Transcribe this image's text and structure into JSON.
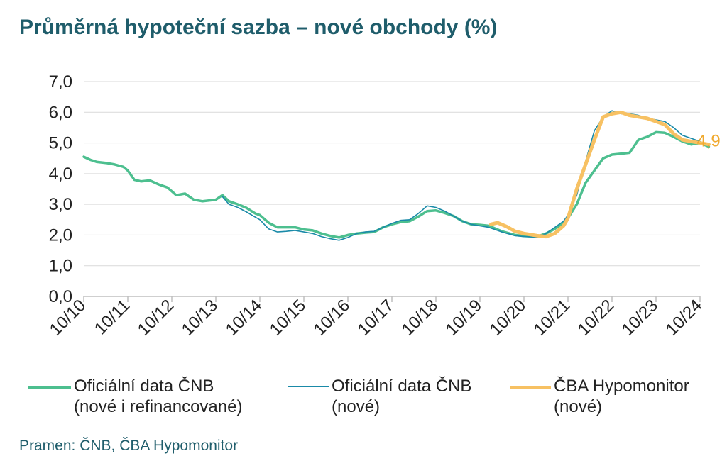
{
  "title": "Průměrná hypoteční sazba – nové obchody (%)",
  "source": "Pramen: ČNB, ČBA Hypomonitor",
  "legend": [
    {
      "line1": "Oficiální data ČNB",
      "line2": "(nové i refinancované)"
    },
    {
      "line1": "Oficiální data ČNB",
      "line2": "(nové)"
    },
    {
      "line1": "ČBA Hypomonitor",
      "line2": "(nové)"
    }
  ],
  "chart_data": {
    "type": "line",
    "ylim": [
      0,
      7
    ],
    "yticks": [
      "0,0",
      "1,0",
      "2,0",
      "3,0",
      "4,0",
      "5,0",
      "6,0",
      "7,0"
    ],
    "xticks": [
      "10/10",
      "10/11",
      "10/12",
      "10/13",
      "10/14",
      "10/15",
      "10/16",
      "10/17",
      "10/18",
      "10/19",
      "10/20",
      "10/21",
      "10/22",
      "10/23",
      "10/24"
    ],
    "grid": true,
    "last_value_label": "4,9",
    "colors": {
      "series1": "#4dbf8f",
      "series2": "#1a8aa8",
      "series3": "#f7c163",
      "label": "#f0a92e",
      "grid": "#d9d9d9"
    },
    "series": [
      {
        "name": "Oficiální data ČNB (nové i refinancované)",
        "points": [
          [
            0,
            4.55
          ],
          [
            0.15,
            4.45
          ],
          [
            0.3,
            4.38
          ],
          [
            0.5,
            4.35
          ],
          [
            0.7,
            4.3
          ],
          [
            0.9,
            4.22
          ],
          [
            1.0,
            4.1
          ],
          [
            1.15,
            3.8
          ],
          [
            1.3,
            3.75
          ],
          [
            1.5,
            3.78
          ],
          [
            1.7,
            3.65
          ],
          [
            1.9,
            3.55
          ],
          [
            2.1,
            3.3
          ],
          [
            2.3,
            3.35
          ],
          [
            2.5,
            3.15
          ],
          [
            2.7,
            3.1
          ],
          [
            3.0,
            3.15
          ],
          [
            3.15,
            3.3
          ],
          [
            3.3,
            3.1
          ],
          [
            3.5,
            3.0
          ],
          [
            3.7,
            2.88
          ],
          [
            3.9,
            2.7
          ],
          [
            4.0,
            2.65
          ],
          [
            4.2,
            2.4
          ],
          [
            4.4,
            2.25
          ],
          [
            4.6,
            2.25
          ],
          [
            4.8,
            2.25
          ],
          [
            5.0,
            2.18
          ],
          [
            5.2,
            2.15
          ],
          [
            5.4,
            2.05
          ],
          [
            5.6,
            1.97
          ],
          [
            5.8,
            1.92
          ],
          [
            6.0,
            2.0
          ],
          [
            6.2,
            2.05
          ],
          [
            6.4,
            2.08
          ],
          [
            6.6,
            2.1
          ],
          [
            6.8,
            2.25
          ],
          [
            7.0,
            2.35
          ],
          [
            7.2,
            2.42
          ],
          [
            7.4,
            2.45
          ],
          [
            7.6,
            2.6
          ],
          [
            7.8,
            2.78
          ],
          [
            8.0,
            2.8
          ],
          [
            8.2,
            2.72
          ],
          [
            8.4,
            2.62
          ],
          [
            8.6,
            2.45
          ],
          [
            8.8,
            2.35
          ],
          [
            9.0,
            2.33
          ],
          [
            9.2,
            2.3
          ],
          [
            9.5,
            2.12
          ],
          [
            9.8,
            2.0
          ],
          [
            10.0,
            1.97
          ],
          [
            10.3,
            1.95
          ],
          [
            10.5,
            2.05
          ],
          [
            10.7,
            2.2
          ],
          [
            10.9,
            2.4
          ],
          [
            11.0,
            2.55
          ],
          [
            11.2,
            3.0
          ],
          [
            11.4,
            3.7
          ],
          [
            11.6,
            4.1
          ],
          [
            11.8,
            4.5
          ],
          [
            12.0,
            4.62
          ],
          [
            12.2,
            4.65
          ],
          [
            12.4,
            4.68
          ],
          [
            12.6,
            5.1
          ],
          [
            12.8,
            5.2
          ],
          [
            13.0,
            5.35
          ],
          [
            13.2,
            5.33
          ],
          [
            13.4,
            5.2
          ],
          [
            13.6,
            5.05
          ],
          [
            13.8,
            4.95
          ],
          [
            14.0,
            5.0
          ],
          [
            14.2,
            4.88
          ]
        ]
      },
      {
        "name": "Oficiální data ČNB (nové)",
        "points": [
          [
            3.15,
            3.25
          ],
          [
            3.3,
            3.0
          ],
          [
            3.5,
            2.9
          ],
          [
            3.7,
            2.75
          ],
          [
            3.9,
            2.58
          ],
          [
            4.0,
            2.5
          ],
          [
            4.2,
            2.2
          ],
          [
            4.4,
            2.1
          ],
          [
            4.6,
            2.12
          ],
          [
            4.8,
            2.15
          ],
          [
            5.0,
            2.1
          ],
          [
            5.2,
            2.05
          ],
          [
            5.4,
            1.95
          ],
          [
            5.6,
            1.88
          ],
          [
            5.8,
            1.83
          ],
          [
            6.0,
            1.92
          ],
          [
            6.2,
            2.05
          ],
          [
            6.4,
            2.1
          ],
          [
            6.6,
            2.12
          ],
          [
            6.8,
            2.25
          ],
          [
            7.0,
            2.38
          ],
          [
            7.2,
            2.48
          ],
          [
            7.4,
            2.5
          ],
          [
            7.6,
            2.7
          ],
          [
            7.8,
            2.95
          ],
          [
            8.0,
            2.9
          ],
          [
            8.2,
            2.78
          ],
          [
            8.4,
            2.62
          ],
          [
            8.6,
            2.45
          ],
          [
            8.8,
            2.35
          ],
          [
            9.0,
            2.3
          ],
          [
            9.2,
            2.25
          ],
          [
            9.5,
            2.1
          ],
          [
            9.8,
            1.98
          ],
          [
            10.0,
            1.95
          ],
          [
            10.3,
            1.93
          ],
          [
            10.5,
            2.05
          ],
          [
            10.7,
            2.25
          ],
          [
            10.9,
            2.45
          ],
          [
            11.0,
            2.65
          ],
          [
            11.2,
            3.3
          ],
          [
            11.4,
            4.4
          ],
          [
            11.6,
            5.4
          ],
          [
            11.8,
            5.85
          ],
          [
            12.0,
            6.05
          ],
          [
            12.2,
            5.95
          ],
          [
            12.4,
            5.95
          ],
          [
            12.6,
            5.9
          ],
          [
            12.8,
            5.8
          ],
          [
            13.0,
            5.75
          ],
          [
            13.2,
            5.7
          ],
          [
            13.4,
            5.5
          ],
          [
            13.6,
            5.25
          ],
          [
            13.8,
            5.15
          ],
          [
            14.0,
            5.05
          ],
          [
            14.2,
            4.9
          ]
        ]
      },
      {
        "name": "ČBA Hypomonitor (nové)",
        "points": [
          [
            9.25,
            2.35
          ],
          [
            9.4,
            2.4
          ],
          [
            9.6,
            2.28
          ],
          [
            9.8,
            2.12
          ],
          [
            10.0,
            2.05
          ],
          [
            10.3,
            1.98
          ],
          [
            10.5,
            1.95
          ],
          [
            10.7,
            2.05
          ],
          [
            10.9,
            2.3
          ],
          [
            11.0,
            2.55
          ],
          [
            11.2,
            3.5
          ],
          [
            11.4,
            4.3
          ],
          [
            11.6,
            5.1
          ],
          [
            11.8,
            5.85
          ],
          [
            12.0,
            5.95
          ],
          [
            12.2,
            6.0
          ],
          [
            12.4,
            5.9
          ],
          [
            12.6,
            5.85
          ],
          [
            12.8,
            5.8
          ],
          [
            13.0,
            5.7
          ],
          [
            13.2,
            5.6
          ],
          [
            13.4,
            5.3
          ],
          [
            13.6,
            5.1
          ],
          [
            13.8,
            5.05
          ],
          [
            14.0,
            5.0
          ],
          [
            14.2,
            4.95
          ]
        ]
      }
    ]
  }
}
